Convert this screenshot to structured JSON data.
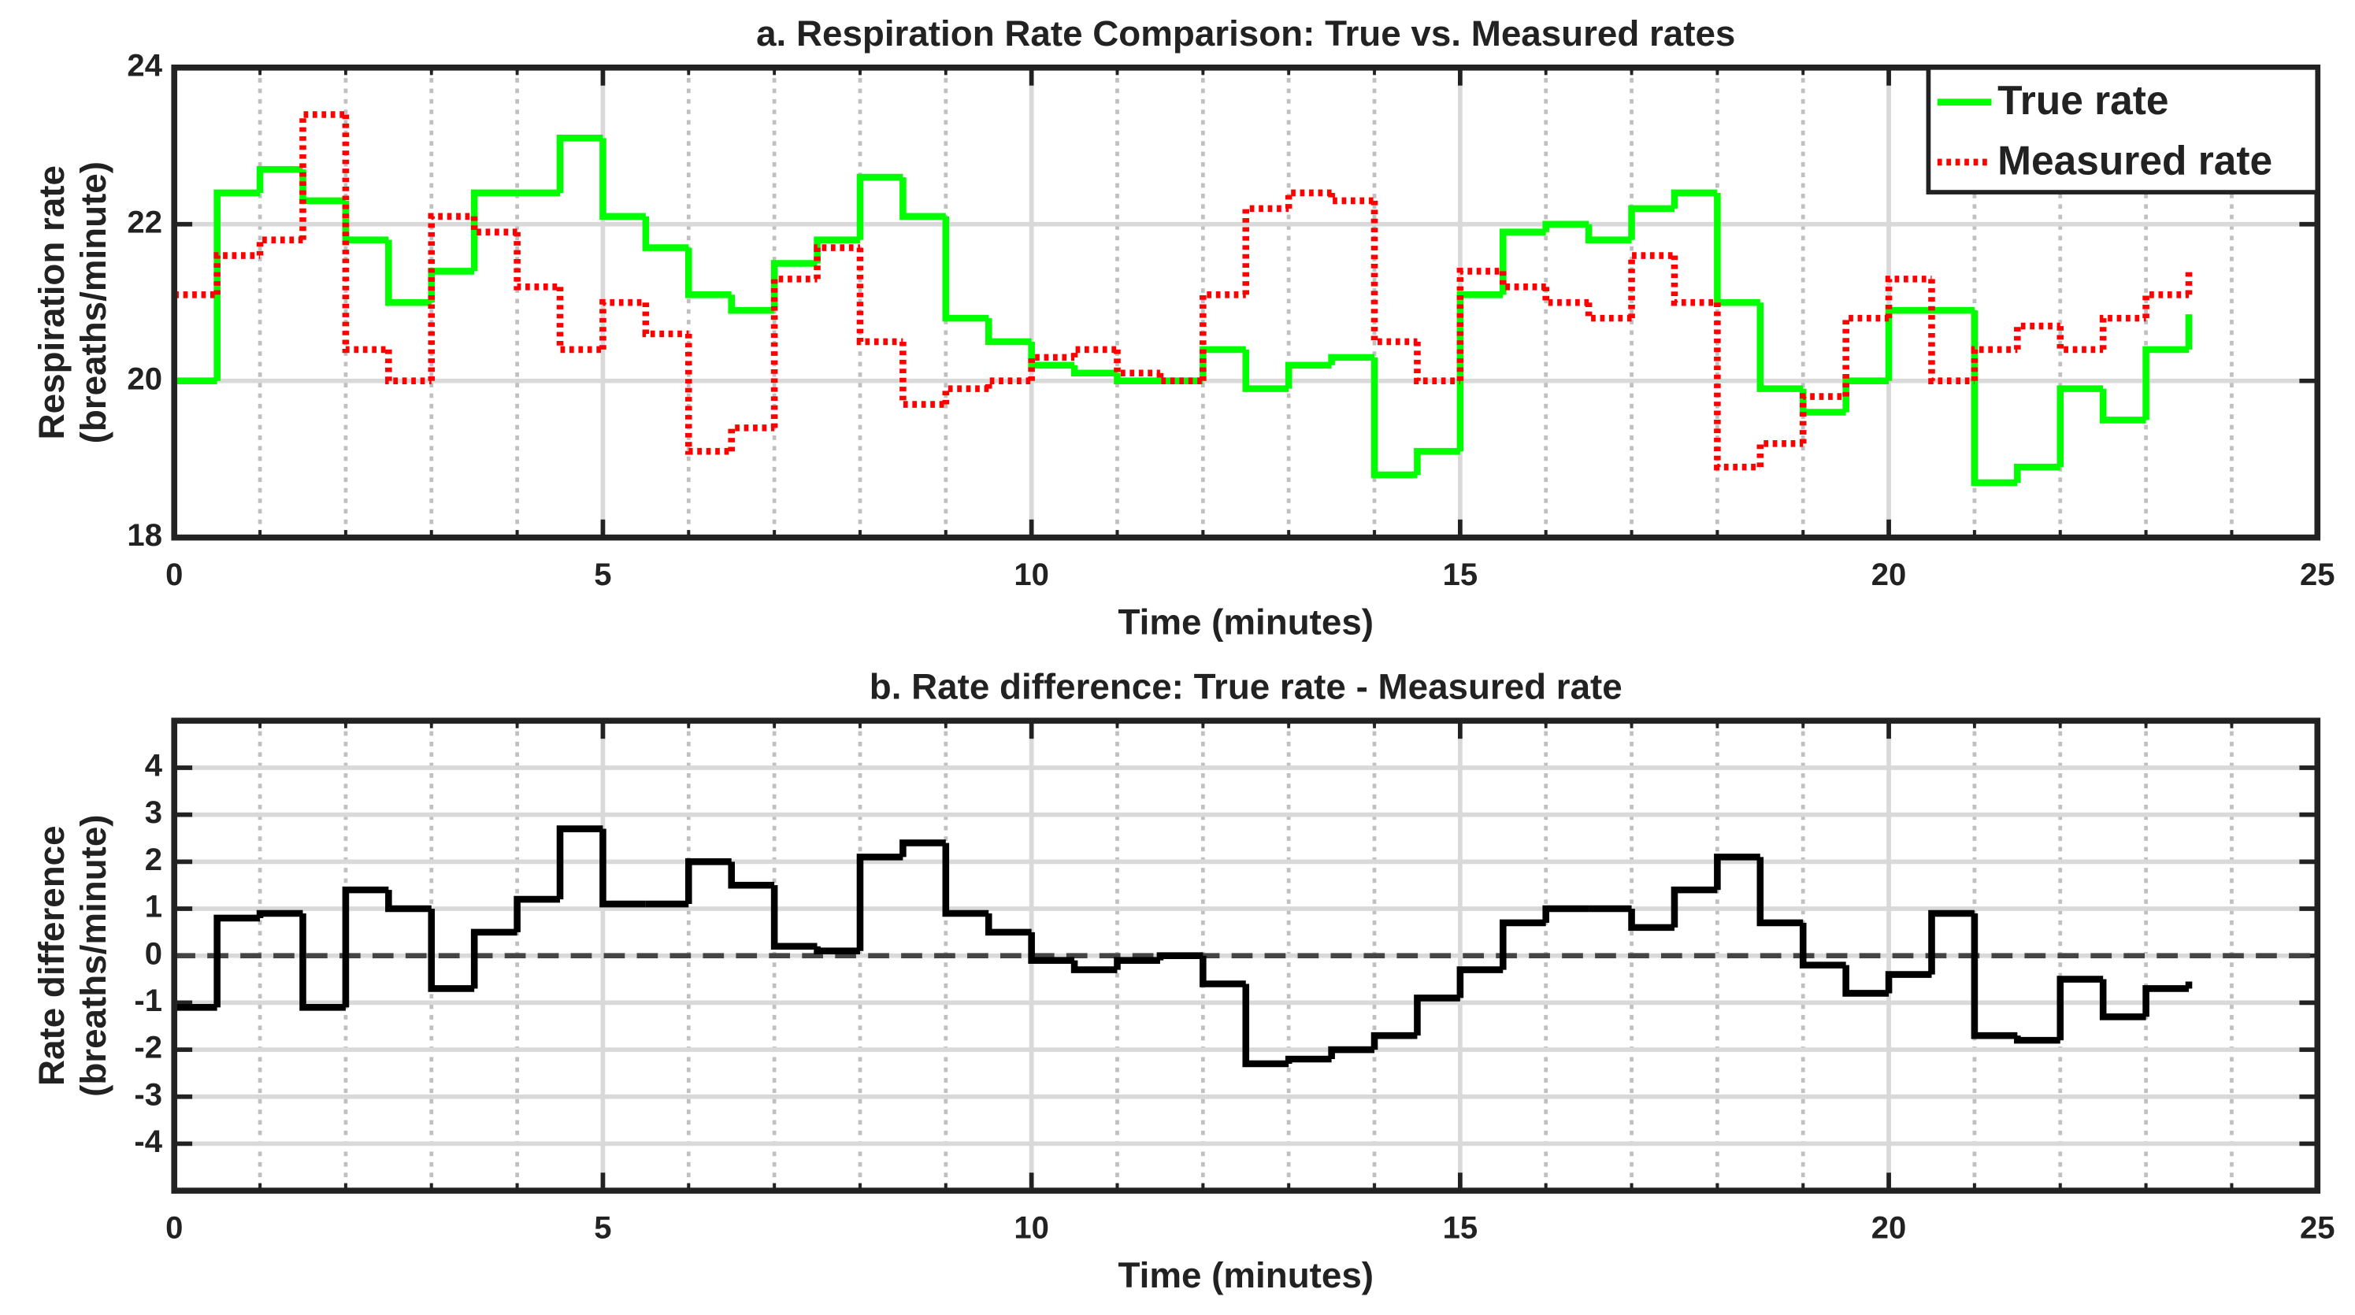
{
  "chart_data": [
    {
      "type": "stairs",
      "title": "a. Respiration Rate Comparison: True vs. Measured rates",
      "xlabel": "Time (minutes)",
      "ylabel": [
        "Respiration rate",
        "(breaths/minute)"
      ],
      "x": [
        0,
        0.5,
        1,
        1.5,
        2,
        2.5,
        3,
        3.5,
        4,
        4.5,
        5,
        5.5,
        6,
        6.5,
        7,
        7.5,
        8,
        8.5,
        9,
        9.5,
        10,
        10.5,
        11,
        11.5,
        12,
        12.5,
        13,
        13.5,
        14,
        14.5,
        15,
        15.5,
        16,
        16.5,
        17,
        17.5,
        18,
        18.5,
        19,
        19.5,
        20,
        20.5,
        21,
        21.5,
        22,
        22.5,
        23,
        23.5
      ],
      "series": [
        {
          "name": "True rate",
          "color": "#00ff00",
          "dash": "solid",
          "values": [
            20.0,
            22.4,
            22.7,
            22.3,
            21.8,
            21.0,
            21.4,
            22.4,
            22.4,
            23.1,
            22.1,
            21.7,
            21.1,
            20.9,
            21.5,
            21.8,
            22.6,
            22.1,
            20.8,
            20.5,
            20.2,
            20.1,
            20.0,
            20.0,
            20.4,
            19.9,
            20.2,
            20.3,
            18.8,
            19.1,
            21.1,
            21.9,
            22.0,
            21.8,
            22.2,
            22.4,
            21.0,
            19.9,
            19.6,
            20.0,
            20.9,
            20.9,
            18.7,
            18.9,
            19.9,
            19.5,
            20.4,
            20.85
          ]
        },
        {
          "name": "Measured rate",
          "color": "#ff0000",
          "dash": "dotted",
          "values": [
            21.1,
            21.6,
            21.8,
            23.4,
            20.4,
            20.0,
            22.1,
            21.9,
            21.2,
            20.4,
            21.0,
            20.6,
            19.1,
            19.4,
            21.3,
            21.7,
            20.5,
            19.7,
            19.9,
            20.0,
            20.3,
            20.4,
            20.1,
            20.0,
            21.1,
            22.2,
            22.4,
            22.3,
            20.5,
            20.0,
            21.4,
            21.2,
            21.0,
            20.8,
            21.6,
            21.0,
            18.9,
            19.2,
            19.8,
            20.8,
            21.3,
            20.0,
            20.4,
            20.7,
            20.4,
            20.8,
            21.1,
            21.4
          ]
        }
      ],
      "xlim": [
        0,
        25
      ],
      "xticks": [
        0,
        5,
        10,
        15,
        20,
        25
      ],
      "minor_xticks": [
        1,
        2,
        3,
        4,
        6,
        7,
        8,
        9,
        11,
        12,
        13,
        14,
        16,
        17,
        18,
        19,
        21,
        22,
        23,
        24
      ],
      "ylim": [
        18,
        24
      ],
      "yticks": [
        18,
        20,
        22,
        24
      ],
      "grid": true,
      "minor_grid": true,
      "legend": "northeast"
    },
    {
      "type": "stairs",
      "title": "b. Rate difference: True rate - Measured rate",
      "xlabel": "Time (minutes)",
      "ylabel": [
        "Rate difference",
        "(breaths/minute)"
      ],
      "x": [
        0,
        0.5,
        1,
        1.5,
        2,
        2.5,
        3,
        3.5,
        4,
        4.5,
        5,
        5.5,
        6,
        6.5,
        7,
        7.5,
        8,
        8.5,
        9,
        9.5,
        10,
        10.5,
        11,
        11.5,
        12,
        12.5,
        13,
        13.5,
        14,
        14.5,
        15,
        15.5,
        16,
        16.5,
        17,
        17.5,
        18,
        18.5,
        19,
        19.5,
        20,
        20.5,
        21,
        21.5,
        22,
        22.5,
        23,
        23.5
      ],
      "series": [
        {
          "color": "#000000",
          "dash": "solid",
          "values": [
            -1.1,
            0.8,
            0.9,
            -1.1,
            1.4,
            1.0,
            -0.7,
            0.5,
            1.2,
            2.7,
            1.1,
            1.1,
            2.0,
            1.5,
            0.2,
            0.1,
            2.1,
            2.4,
            0.9,
            0.5,
            -0.1,
            -0.3,
            -0.1,
            0.0,
            -0.6,
            -2.3,
            -2.2,
            -2.0,
            -1.7,
            -0.9,
            -0.3,
            0.7,
            1.0,
            1.0,
            0.6,
            1.4,
            2.1,
            0.7,
            -0.2,
            -0.8,
            -0.4,
            0.9,
            -1.7,
            -1.8,
            -0.5,
            -1.3,
            -0.7,
            -0.55
          ]
        }
      ],
      "xlim": [
        0,
        25
      ],
      "xticks": [
        0,
        5,
        10,
        15,
        20,
        25
      ],
      "minor_xticks": [
        1,
        2,
        3,
        4,
        6,
        7,
        8,
        9,
        11,
        12,
        13,
        14,
        16,
        17,
        18,
        19,
        21,
        22,
        23,
        24
      ],
      "ylim": [
        -5,
        5
      ],
      "yticks": [
        -4,
        -3,
        -2,
        -1,
        0,
        1,
        2,
        3,
        4
      ],
      "grid": true,
      "minor_grid": true,
      "hline": 0
    }
  ]
}
